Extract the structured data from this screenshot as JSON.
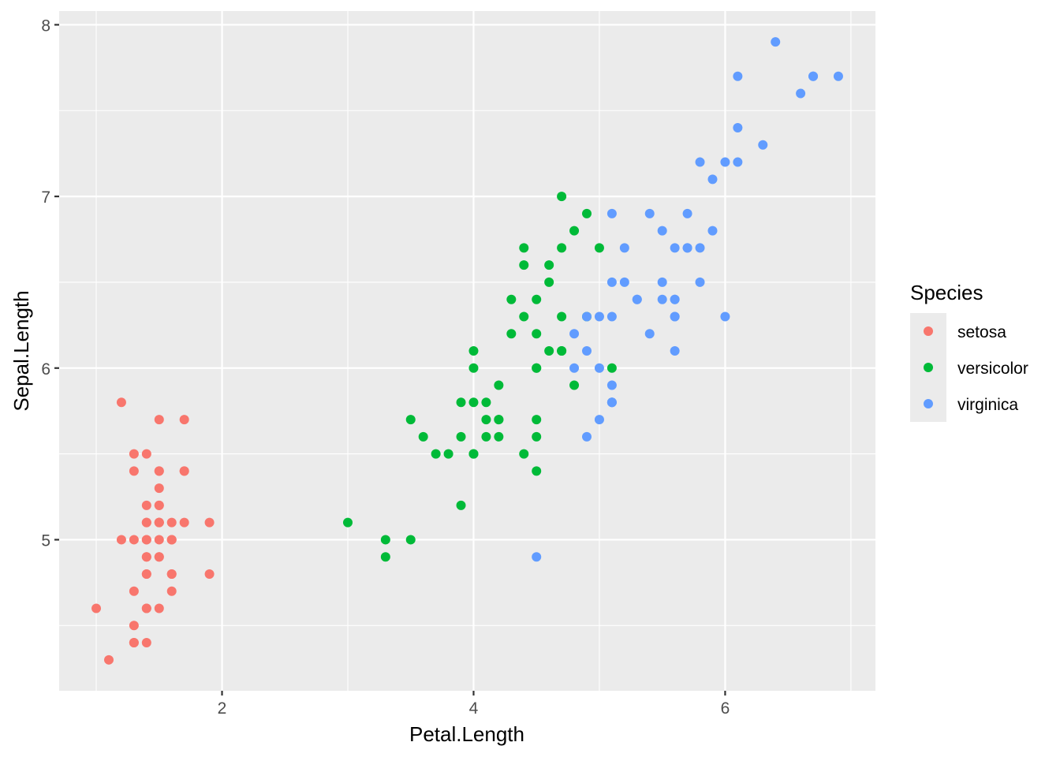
{
  "chart_data": {
    "type": "scatter",
    "title": "",
    "xlabel": "Petal.Length",
    "ylabel": "Sepal.Length",
    "xlim": [
      0.705,
      7.195
    ],
    "ylim": [
      4.12,
      8.08
    ],
    "x_ticks": [
      2,
      4,
      6
    ],
    "y_ticks": [
      5,
      6,
      7,
      8
    ],
    "x_minor": [
      1,
      3,
      5,
      7
    ],
    "y_minor": [
      4.5,
      5.5,
      6.5,
      7.5
    ],
    "grid": true,
    "legend": {
      "title": "Species",
      "placement": "right"
    },
    "series": [
      {
        "name": "setosa",
        "color": "#F8766D",
        "points": [
          [
            1.4,
            5.1
          ],
          [
            1.4,
            4.9
          ],
          [
            1.3,
            4.7
          ],
          [
            1.5,
            4.6
          ],
          [
            1.4,
            5.0
          ],
          [
            1.7,
            5.4
          ],
          [
            1.4,
            4.6
          ],
          [
            1.5,
            5.0
          ],
          [
            1.4,
            4.4
          ],
          [
            1.5,
            4.9
          ],
          [
            1.5,
            5.4
          ],
          [
            1.6,
            4.8
          ],
          [
            1.4,
            4.8
          ],
          [
            1.1,
            4.3
          ],
          [
            1.2,
            5.8
          ],
          [
            1.5,
            5.7
          ],
          [
            1.3,
            5.4
          ],
          [
            1.4,
            5.1
          ],
          [
            1.7,
            5.7
          ],
          [
            1.5,
            5.1
          ],
          [
            1.7,
            5.4
          ],
          [
            1.5,
            5.1
          ],
          [
            1.0,
            4.6
          ],
          [
            1.7,
            5.1
          ],
          [
            1.9,
            4.8
          ],
          [
            1.6,
            5.0
          ],
          [
            1.6,
            5.0
          ],
          [
            1.5,
            5.2
          ],
          [
            1.4,
            5.2
          ],
          [
            1.6,
            4.7
          ],
          [
            1.6,
            4.8
          ],
          [
            1.5,
            5.4
          ],
          [
            1.5,
            5.2
          ],
          [
            1.4,
            5.5
          ],
          [
            1.5,
            4.9
          ],
          [
            1.2,
            5.0
          ],
          [
            1.3,
            5.5
          ],
          [
            1.4,
            4.9
          ],
          [
            1.3,
            4.4
          ],
          [
            1.5,
            5.1
          ],
          [
            1.3,
            5.0
          ],
          [
            1.3,
            4.5
          ],
          [
            1.3,
            4.4
          ],
          [
            1.6,
            5.0
          ],
          [
            1.9,
            5.1
          ],
          [
            1.4,
            4.8
          ],
          [
            1.6,
            5.1
          ],
          [
            1.4,
            4.6
          ],
          [
            1.5,
            5.3
          ],
          [
            1.4,
            5.0
          ]
        ]
      },
      {
        "name": "versicolor",
        "color": "#00BA38",
        "points": [
          [
            4.7,
            7.0
          ],
          [
            4.5,
            6.4
          ],
          [
            4.9,
            6.9
          ],
          [
            4.0,
            5.5
          ],
          [
            4.6,
            6.5
          ],
          [
            4.5,
            5.7
          ],
          [
            4.7,
            6.3
          ],
          [
            3.3,
            4.9
          ],
          [
            4.6,
            6.6
          ],
          [
            3.9,
            5.2
          ],
          [
            3.5,
            5.0
          ],
          [
            4.2,
            5.9
          ],
          [
            4.0,
            6.0
          ],
          [
            4.7,
            6.1
          ],
          [
            3.6,
            5.6
          ],
          [
            4.4,
            6.7
          ],
          [
            4.5,
            5.6
          ],
          [
            4.1,
            5.8
          ],
          [
            4.5,
            6.2
          ],
          [
            3.9,
            5.6
          ],
          [
            4.8,
            5.9
          ],
          [
            4.0,
            6.1
          ],
          [
            4.9,
            6.3
          ],
          [
            4.7,
            6.1
          ],
          [
            4.3,
            6.4
          ],
          [
            4.4,
            6.6
          ],
          [
            4.8,
            6.8
          ],
          [
            5.0,
            6.7
          ],
          [
            4.5,
            6.0
          ],
          [
            3.5,
            5.7
          ],
          [
            3.8,
            5.5
          ],
          [
            3.7,
            5.5
          ],
          [
            3.9,
            5.8
          ],
          [
            5.1,
            6.0
          ],
          [
            4.5,
            5.4
          ],
          [
            4.5,
            6.0
          ],
          [
            4.7,
            6.7
          ],
          [
            4.4,
            6.3
          ],
          [
            4.1,
            5.6
          ],
          [
            4.0,
            5.5
          ],
          [
            4.4,
            5.5
          ],
          [
            4.6,
            6.1
          ],
          [
            4.0,
            5.8
          ],
          [
            3.3,
            5.0
          ],
          [
            4.2,
            5.6
          ],
          [
            4.2,
            5.7
          ],
          [
            4.2,
            5.7
          ],
          [
            4.3,
            6.2
          ],
          [
            3.0,
            5.1
          ],
          [
            4.1,
            5.7
          ]
        ]
      },
      {
        "name": "virginica",
        "color": "#619CFF",
        "points": [
          [
            6.0,
            6.3
          ],
          [
            5.1,
            5.8
          ],
          [
            5.9,
            7.1
          ],
          [
            5.6,
            6.3
          ],
          [
            5.8,
            6.5
          ],
          [
            6.6,
            7.6
          ],
          [
            4.5,
            4.9
          ],
          [
            6.3,
            7.3
          ],
          [
            5.8,
            6.7
          ],
          [
            6.1,
            7.2
          ],
          [
            5.1,
            6.5
          ],
          [
            5.3,
            6.4
          ],
          [
            5.5,
            6.8
          ],
          [
            5.0,
            5.7
          ],
          [
            5.1,
            5.8
          ],
          [
            5.3,
            6.4
          ],
          [
            5.5,
            6.5
          ],
          [
            6.7,
            7.7
          ],
          [
            6.9,
            7.7
          ],
          [
            5.0,
            6.0
          ],
          [
            5.7,
            6.9
          ],
          [
            4.9,
            5.6
          ],
          [
            6.7,
            7.7
          ],
          [
            4.9,
            6.3
          ],
          [
            5.7,
            6.7
          ],
          [
            6.0,
            7.2
          ],
          [
            4.8,
            6.2
          ],
          [
            4.9,
            6.1
          ],
          [
            5.6,
            6.4
          ],
          [
            5.8,
            7.2
          ],
          [
            6.1,
            7.4
          ],
          [
            6.4,
            7.9
          ],
          [
            5.6,
            6.4
          ],
          [
            5.1,
            6.3
          ],
          [
            5.6,
            6.1
          ],
          [
            6.1,
            7.7
          ],
          [
            5.6,
            6.3
          ],
          [
            5.5,
            6.4
          ],
          [
            4.8,
            6.0
          ],
          [
            5.4,
            6.9
          ],
          [
            5.6,
            6.7
          ],
          [
            5.1,
            6.9
          ],
          [
            5.1,
            5.8
          ],
          [
            5.9,
            6.8
          ],
          [
            5.7,
            6.7
          ],
          [
            5.2,
            6.7
          ],
          [
            5.0,
            6.3
          ],
          [
            5.2,
            6.5
          ],
          [
            5.4,
            6.2
          ],
          [
            5.1,
            5.9
          ]
        ]
      }
    ]
  }
}
